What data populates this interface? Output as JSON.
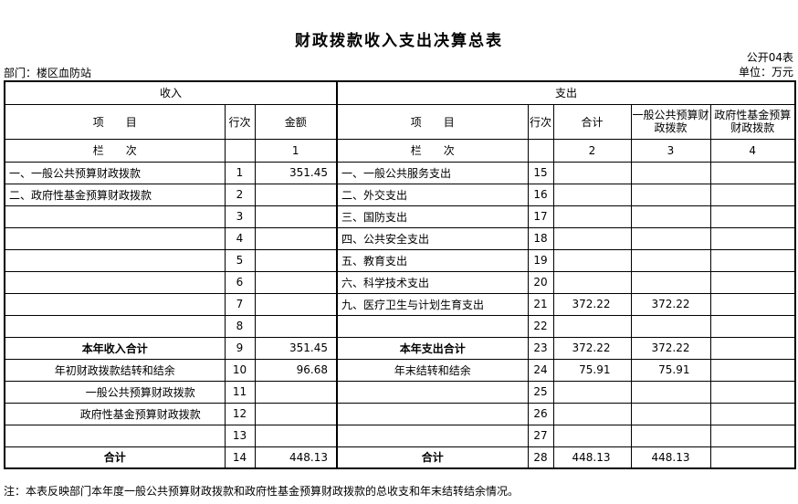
{
  "colors": {
    "background": "#ffffff",
    "text": "#000000",
    "border": "#000000"
  },
  "title": "财政拨款收入支出决算总表",
  "meta": {
    "table_code": "公开04表",
    "department": "部门：楼区血防站",
    "unit": "单位：万元"
  },
  "income": {
    "section_title": "收入",
    "headers": {
      "item": "项　　目",
      "line_no": "行次",
      "amount": "金额"
    },
    "column_row": {
      "label": "栏　　次",
      "amount_no": "1"
    },
    "rows": [
      {
        "item": "一、一般公共预算财政拨款",
        "line": "1",
        "amount": "351.45",
        "style": "left"
      },
      {
        "item": "二、政府性基金预算财政拨款",
        "line": "2",
        "amount": "",
        "style": "left"
      },
      {
        "item": "",
        "line": "3",
        "amount": "",
        "style": "left"
      },
      {
        "item": "",
        "line": "4",
        "amount": "",
        "style": "left"
      },
      {
        "item": "",
        "line": "5",
        "amount": "",
        "style": "left"
      },
      {
        "item": "",
        "line": "6",
        "amount": "",
        "style": "left"
      },
      {
        "item": "",
        "line": "7",
        "amount": "",
        "style": "left"
      },
      {
        "item": "",
        "line": "8",
        "amount": "",
        "style": "left"
      },
      {
        "item": "本年收入合计",
        "line": "9",
        "amount": "351.45",
        "style": "bold"
      },
      {
        "item": "年初财政拨款结转和结余",
        "line": "10",
        "amount": "96.68",
        "style": "center"
      },
      {
        "item": "一般公共预算财政拨款",
        "line": "11",
        "amount": "",
        "style": "indent"
      },
      {
        "item": "政府性基金预算财政拨款",
        "line": "12",
        "amount": "",
        "style": "indent"
      },
      {
        "item": "",
        "line": "13",
        "amount": "",
        "style": "left"
      },
      {
        "item": "合计",
        "line": "14",
        "amount": "448.13",
        "style": "bold"
      }
    ]
  },
  "expenditure": {
    "section_title": "支出",
    "headers": {
      "item": "项　　目",
      "line_no": "行次",
      "total": "合计",
      "general": "一般公共预算财政拨款",
      "gov_fund": "政府性基金预算财政拨款"
    },
    "column_row": {
      "label": "栏　　次",
      "total_no": "2",
      "general_no": "3",
      "gov_fund_no": "4"
    },
    "rows": [
      {
        "item": "一、一般公共服务支出",
        "line": "15",
        "total": "",
        "general": "",
        "gov_fund": "",
        "style": "left"
      },
      {
        "item": "二、外交支出",
        "line": "16",
        "total": "",
        "general": "",
        "gov_fund": "",
        "style": "left"
      },
      {
        "item": "三、国防支出",
        "line": "17",
        "total": "",
        "general": "",
        "gov_fund": "",
        "style": "left"
      },
      {
        "item": "四、公共安全支出",
        "line": "18",
        "total": "",
        "general": "",
        "gov_fund": "",
        "style": "left"
      },
      {
        "item": "五、教育支出",
        "line": "19",
        "total": "",
        "general": "",
        "gov_fund": "",
        "style": "left"
      },
      {
        "item": "六、科学技术支出",
        "line": "20",
        "total": "",
        "general": "",
        "gov_fund": "",
        "style": "left"
      },
      {
        "item": "九、医疗卫生与计划生育支出",
        "line": "21",
        "total": "372.22",
        "general": "372.22",
        "gov_fund": "",
        "style": "left"
      },
      {
        "item": "",
        "line": "22",
        "total": "",
        "general": "",
        "gov_fund": "",
        "style": "left"
      },
      {
        "item": "本年支出合计",
        "line": "23",
        "total": "372.22",
        "general": "372.22",
        "gov_fund": "",
        "style": "bold"
      },
      {
        "item": "年末结转和结余",
        "line": "24",
        "total": "75.91",
        "general": "75.91",
        "gov_fund": "",
        "style": "center"
      },
      {
        "item": "",
        "line": "25",
        "total": "",
        "general": "",
        "gov_fund": "",
        "style": "left"
      },
      {
        "item": "",
        "line": "26",
        "total": "",
        "general": "",
        "gov_fund": "",
        "style": "left"
      },
      {
        "item": "",
        "line": "27",
        "total": "",
        "general": "",
        "gov_fund": "",
        "style": "left"
      },
      {
        "item": "合计",
        "line": "28",
        "total": "448.13",
        "general": "448.13",
        "gov_fund": "",
        "style": "bold"
      }
    ]
  },
  "note": "注：本表反映部门本年度一般公共预算财政拨款和政府性基金预算财政拨款的总收支和年末结转结余情况。"
}
